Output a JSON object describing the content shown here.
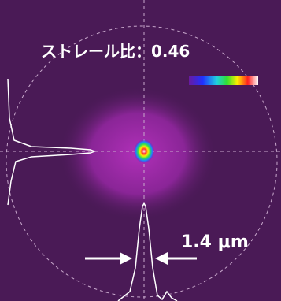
{
  "labels": {
    "strehl": "ストレール比：0.46",
    "width": "1.4 μm"
  }
}
